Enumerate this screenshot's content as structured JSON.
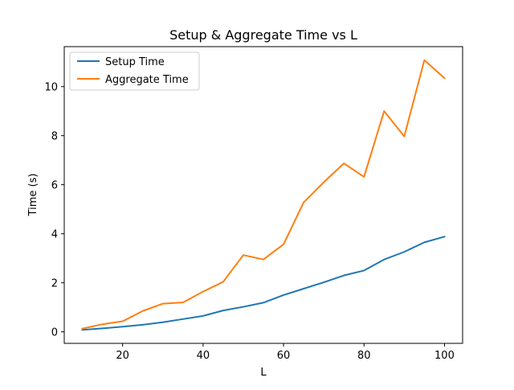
{
  "chart_data": {
    "type": "line",
    "title": "Setup & Aggregate Time vs L",
    "xlabel": "L",
    "ylabel": "Time (s)",
    "x": [
      10,
      15,
      20,
      25,
      30,
      35,
      40,
      45,
      50,
      55,
      60,
      65,
      70,
      75,
      80,
      85,
      90,
      95,
      100
    ],
    "series": [
      {
        "name": "Setup Time",
        "color": "#1f77b4",
        "values": [
          0.08,
          0.14,
          0.21,
          0.29,
          0.39,
          0.52,
          0.65,
          0.87,
          1.02,
          1.19,
          1.5,
          1.76,
          2.02,
          2.3,
          2.5,
          2.95,
          3.26,
          3.65,
          3.88
        ]
      },
      {
        "name": "Aggregate Time",
        "color": "#ff7f0e",
        "values": [
          0.13,
          0.31,
          0.43,
          0.85,
          1.15,
          1.2,
          1.64,
          2.04,
          3.13,
          2.95,
          3.57,
          5.28,
          6.1,
          6.87,
          6.32,
          9.0,
          7.97,
          11.08,
          10.34
        ]
      }
    ],
    "xticks": [
      20,
      40,
      60,
      80,
      100
    ],
    "yticks": [
      0,
      2,
      4,
      6,
      8,
      10
    ],
    "xlim": [
      5.5,
      104.5
    ],
    "ylim": [
      -0.47,
      11.63
    ],
    "grid": false,
    "legend_position": "top-left"
  }
}
